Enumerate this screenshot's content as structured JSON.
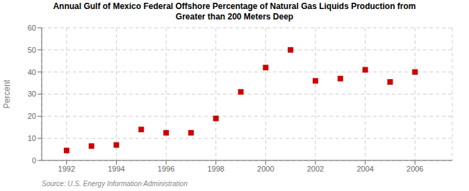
{
  "chart_data": {
    "type": "scatter",
    "title": "Annual Gulf of Mexico Federal Offshore Percentage of Natural Gas Liquids Production from\nGreater than 200 Meters Deep",
    "y_label": "Percent",
    "source": "Source: U.S. Energy Information Administration",
    "x": [
      1992,
      1993,
      1994,
      1995,
      1996,
      1997,
      1998,
      1999,
      2000,
      2001,
      2002,
      2003,
      2004,
      2005,
      2006
    ],
    "values": [
      4.5,
      6.5,
      7.0,
      14.0,
      12.5,
      12.5,
      19.0,
      31.0,
      42.0,
      50.0,
      36.0,
      37.0,
      41.0,
      35.5,
      40.0
    ],
    "color": "#cc0000",
    "marker": "square",
    "xlim": [
      1991.0,
      2007.5
    ],
    "ylim": [
      0,
      60
    ],
    "xticks": [
      1992,
      1994,
      1996,
      1998,
      2000,
      2002,
      2004,
      2006
    ],
    "yticks": [
      0,
      10,
      20,
      30,
      40,
      50,
      60
    ],
    "grid": true
  }
}
